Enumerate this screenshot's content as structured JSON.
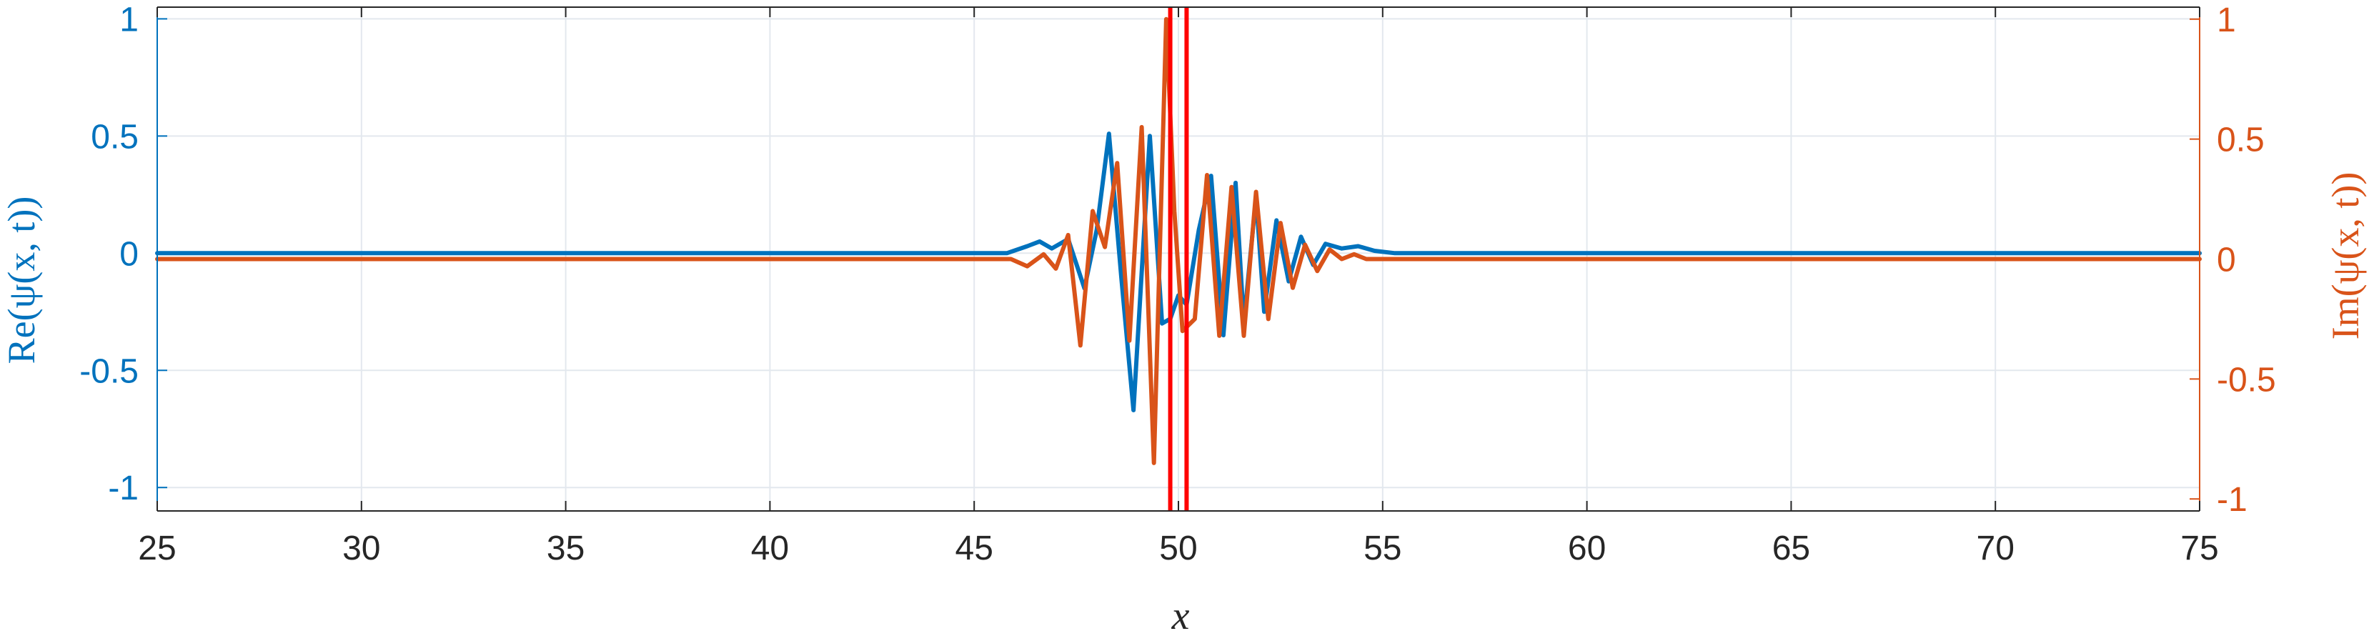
{
  "chart_data": {
    "type": "line",
    "xlabel": "x",
    "ylabel_left": "Re(ψ(x, t))",
    "ylabel_right": "Im(ψ(x, t))",
    "xlim": [
      25,
      75
    ],
    "ylim_left": [
      -1.1,
      1.05
    ],
    "ylim_right": [
      -1.05,
      1.05
    ],
    "x_ticks": [
      25,
      30,
      35,
      40,
      45,
      50,
      55,
      60,
      65,
      70,
      75
    ],
    "y_ticks_left": [
      -1,
      -0.5,
      0,
      0.5,
      1
    ],
    "y_ticks_right": [
      -1,
      -0.5,
      0,
      0.5,
      1
    ],
    "y_tick_labels_left": [
      "-1",
      "-0.5",
      "0",
      "0.5",
      "1"
    ],
    "y_tick_labels_right": [
      "-1",
      "-0.5",
      "0",
      "0.5",
      "1"
    ],
    "grid": true,
    "colors": {
      "re": "#0072BD",
      "im": "#D95319",
      "markers": "#FF0000",
      "axis": "#262626",
      "grid": "#E3E8EE"
    },
    "vertical_markers": [
      49.8,
      50.2
    ],
    "series": [
      {
        "axis": "left",
        "color": "#0072BD",
        "x": [
          25,
          45.0,
          45.8,
          46.3,
          46.6,
          46.9,
          47.3,
          47.7,
          48.0,
          48.3,
          48.6,
          48.9,
          49.3,
          49.6,
          49.8,
          50.0,
          50.2,
          50.5,
          50.8,
          51.1,
          51.4,
          51.6,
          51.9,
          52.1,
          52.4,
          52.7,
          53.0,
          53.3,
          53.6,
          54.0,
          54.4,
          54.8,
          55.3,
          56.0,
          75
        ],
        "y": [
          0,
          0,
          0.0,
          0.03,
          0.05,
          0.02,
          0.06,
          -0.15,
          0.1,
          0.51,
          -0.1,
          -0.67,
          0.5,
          -0.3,
          -0.28,
          -0.18,
          -0.22,
          0.1,
          0.33,
          -0.35,
          0.3,
          -0.3,
          0.24,
          -0.25,
          0.14,
          -0.12,
          0.07,
          -0.05,
          0.04,
          0.02,
          0.03,
          0.01,
          0.0,
          0,
          0
        ]
      },
      {
        "axis": "right",
        "color": "#D95319",
        "x": [
          25,
          45.5,
          45.9,
          46.3,
          46.7,
          47.0,
          47.3,
          47.6,
          47.9,
          48.2,
          48.5,
          48.8,
          49.1,
          49.4,
          49.7,
          49.9,
          50.1,
          50.4,
          50.7,
          51.0,
          51.3,
          51.6,
          51.9,
          52.2,
          52.5,
          52.8,
          53.1,
          53.4,
          53.7,
          54.0,
          54.3,
          54.6,
          55.0,
          75
        ],
        "y": [
          0,
          0,
          0.0,
          -0.03,
          0.02,
          -0.04,
          0.1,
          -0.36,
          0.2,
          0.05,
          0.4,
          -0.34,
          0.55,
          -0.85,
          1.0,
          0.2,
          -0.3,
          -0.25,
          0.35,
          -0.32,
          0.3,
          -0.32,
          0.28,
          -0.25,
          0.15,
          -0.12,
          0.06,
          -0.05,
          0.04,
          0.0,
          0.02,
          0.0,
          0.0,
          0
        ]
      }
    ]
  }
}
